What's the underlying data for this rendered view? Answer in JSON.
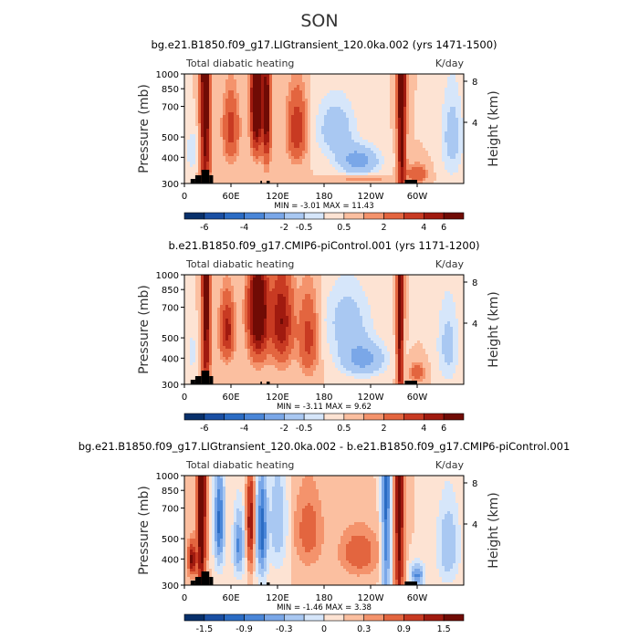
{
  "page": {
    "season": "SON"
  },
  "colors": {
    "palette_full": [
      "#08306b",
      "#1a4fa3",
      "#2b6cc4",
      "#4a86d8",
      "#7aa7e8",
      "#a9c8f2",
      "#d6e6fa",
      "#fde3d3",
      "#fbbfa0",
      "#f4936c",
      "#e3653f",
      "#c83a22",
      "#a01a0f",
      "#700b05"
    ],
    "land": "#000000"
  },
  "chart_data": [
    {
      "type": "heatmap",
      "id": "panel1",
      "title": "bg.e21.B1850.f09_g17.LIGtransient_120.0ka.002 (yrs 1471-1500)",
      "left_label": "Total diabatic heating",
      "units": "K/day",
      "ylabel": "Pressure (mb)",
      "ylabel_right": "Height (km)",
      "y_ticks": [
        "300",
        "400",
        "500",
        "700",
        "850",
        "1000"
      ],
      "y_ticks_right": [
        "8",
        "4"
      ],
      "x_ticks": [
        "0",
        "60E",
        "120E",
        "180",
        "120W",
        "60W"
      ],
      "min_max": "MIN =   -3.01   MAX =   11.43",
      "colorbar_labels": [
        "-6",
        "-4",
        "-2",
        "-0.5",
        "0.5",
        "2",
        "4",
        "6"
      ],
      "levels": [
        -6,
        -5,
        -4,
        -3,
        -2,
        -1,
        -0.5,
        0,
        0.5,
        1,
        2,
        3,
        4,
        5,
        6
      ],
      "summary": "Strong heating (red) over 15-35E, 75-110E and 270-285E columns; cooling (blue) over the central and eastern Pacific (180-260E) and near 360E"
    },
    {
      "type": "heatmap",
      "id": "panel2",
      "title": "b.e21.B1850.f09_g17.CMIP6-piControl.001 (yrs 1171-1200)",
      "left_label": "Total diabatic heating",
      "units": "K/day",
      "ylabel": "Pressure (mb)",
      "ylabel_right": "Height (km)",
      "y_ticks": [
        "300",
        "400",
        "500",
        "700",
        "850",
        "1000"
      ],
      "y_ticks_right": [
        "8",
        "4"
      ],
      "x_ticks": [
        "0",
        "60E",
        "120E",
        "180",
        "120W",
        "60W"
      ],
      "min_max": "MIN =   -3.11   MAX =   9.62",
      "colorbar_labels": [
        "-6",
        "-4",
        "-2",
        "-0.5",
        "0.5",
        "2",
        "4",
        "6"
      ],
      "levels": [
        -6,
        -5,
        -4,
        -3,
        -2,
        -1,
        -0.5,
        0,
        0.5,
        1,
        2,
        3,
        4,
        5,
        6
      ],
      "summary": "Broad heating over 40-170E with maxima near 90-110E; cooling over the Pacific east of the dateline and near 360E"
    },
    {
      "type": "heatmap",
      "id": "panel3",
      "title": "bg.e21.B1850.f09_g17.LIGtransient_120.0ka.002 - b.e21.B1850.f09_g17.CMIP6-piControl.001",
      "left_label": "Total diabatic heating",
      "units": "K/day",
      "ylabel": "Pressure (mb)",
      "ylabel_right": "Height (km)",
      "y_ticks": [
        "300",
        "400",
        "500",
        "700",
        "850",
        "1000"
      ],
      "y_ticks_right": [
        "8",
        "4"
      ],
      "x_ticks": [
        "0",
        "60E",
        "120E",
        "180",
        "120W",
        "60W"
      ],
      "min_max": "MIN =   -1.46   MAX =   3.38",
      "colorbar_labels": [
        "-1.5",
        "-0.9",
        "-0.3",
        "0",
        "0.3",
        "0.9",
        "1.5"
      ],
      "levels": [
        -1.8,
        -1.5,
        -1.2,
        -0.9,
        -0.6,
        -0.3,
        -0.1,
        0,
        0.1,
        0.3,
        0.6,
        0.9,
        1.2,
        1.5,
        1.8
      ],
      "summary": "Positive difference near 15-35E and 270-280E; negative difference near 40-60E, 90-110E and 250-265E"
    }
  ]
}
